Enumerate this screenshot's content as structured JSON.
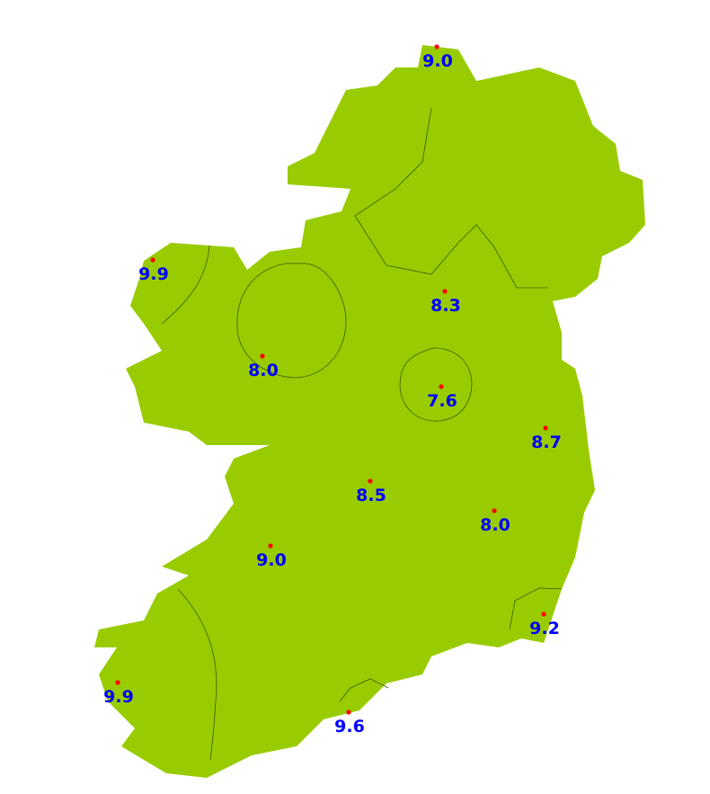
{
  "map": {
    "land_color": "#99cc00",
    "contour_color": "#3a5a00",
    "marker_color": "#ff0000",
    "label_color": "#0000ff",
    "stations": [
      {
        "value": "9.0"
      },
      {
        "value": "9.9"
      },
      {
        "value": "8.3"
      },
      {
        "value": "8.0"
      },
      {
        "value": "7.6"
      },
      {
        "value": "8.7"
      },
      {
        "value": "8.5"
      },
      {
        "value": "8.0"
      },
      {
        "value": "9.0"
      },
      {
        "value": "9.2"
      },
      {
        "value": "9.9"
      },
      {
        "value": "9.6"
      }
    ]
  }
}
